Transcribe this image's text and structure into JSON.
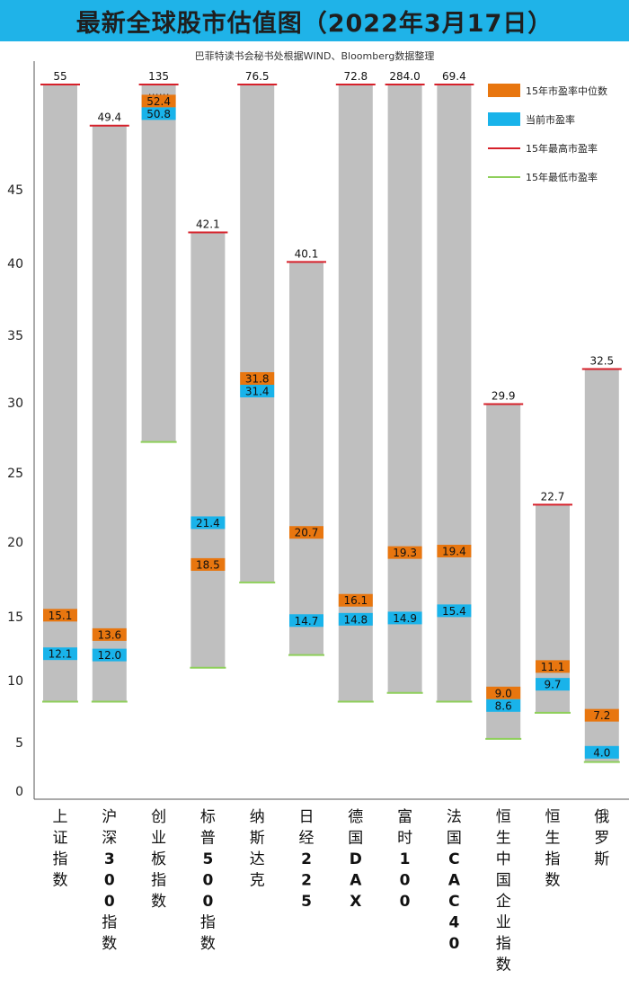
{
  "title": "最新全球股市估值图（2022年3月17日）",
  "subtitle": "巴菲特读书会秘书处根据WIND、Bloomberg数据整理",
  "chart_data": {
    "type": "range-bar",
    "title": "最新全球股市估值图（2022年3月17日）",
    "source": "巴菲特读书会秘书处根据WIND、Bloomberg数据整理",
    "y_ticks": [
      0,
      5,
      10,
      15,
      20,
      25,
      30,
      35,
      40,
      45
    ],
    "legend": [
      {
        "key": "median",
        "label": "15年市盈率中位数",
        "color": "#e8760f"
      },
      {
        "key": "current",
        "label": "当前市盈率",
        "color": "#19b3ea"
      },
      {
        "key": "high",
        "label": "15年最高市盈率",
        "color": "#d6202a"
      },
      {
        "key": "low",
        "label": "15年最低市盈率",
        "color": "#8ecf5a"
      }
    ],
    "series": [
      {
        "name": "上证指数",
        "high": 55,
        "high_label": "55",
        "low": 8.3,
        "median": 15.1,
        "current": 12.1
      },
      {
        "name": "沪深300指数",
        "high": 49.4,
        "high_label": "49.4",
        "low": 8.3,
        "median": 13.6,
        "current": 12.0
      },
      {
        "name": "创业板指数",
        "high": 135,
        "high_label": "135",
        "low": 27.2,
        "median": 52.4,
        "current": 50.8,
        "break_marker": "……"
      },
      {
        "name": "标普500指数",
        "high": 42.1,
        "high_label": "42.1",
        "low": 11.0,
        "median": 18.5,
        "current": 21.4
      },
      {
        "name": "纳斯达克",
        "high": 76.5,
        "high_label": "76.5",
        "low": 17.3,
        "median": 31.8,
        "current": 31.4
      },
      {
        "name": "日经225",
        "high": 40.1,
        "high_label": "40.1",
        "low": 12.0,
        "median": 20.7,
        "current": 14.7
      },
      {
        "name": "德国DAX",
        "high": 72.8,
        "high_label": "72.8",
        "low": 8.3,
        "median": 16.1,
        "current": 14.8
      },
      {
        "name": "富时100",
        "high": 284.0,
        "high_label": "284.0",
        "low": 9.0,
        "median": 19.3,
        "current": 14.9
      },
      {
        "name": "法国CAC40",
        "high": 69.4,
        "high_label": "69.4",
        "low": 8.3,
        "median": 19.4,
        "current": 15.4
      },
      {
        "name": "恒生中国企业指数",
        "high": 29.9,
        "high_label": "29.9",
        "low": 5.3,
        "median": 9.0,
        "current": 8.6
      },
      {
        "name": "恒生指数",
        "high": 22.7,
        "high_label": "22.7",
        "low": 7.4,
        "median": 11.1,
        "current": 9.7
      },
      {
        "name": "俄罗斯",
        "high": 32.5,
        "high_label": "32.5",
        "low": 3.0,
        "median": 7.2,
        "current": 4.0
      }
    ]
  }
}
